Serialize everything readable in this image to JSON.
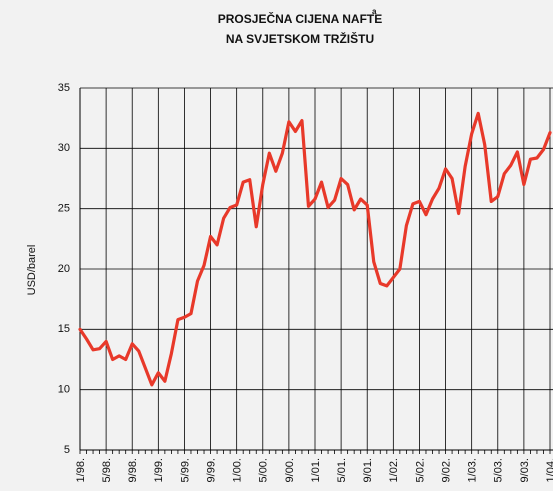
{
  "chart_data": {
    "type": "line",
    "title": [
      "PROSJEČNA CIJENA NAFTE",
      "NA SVJETSKOM TRŽIŠTU"
    ],
    "title_superscript": "a",
    "y_label": "USD/barel",
    "categories": [
      "1/98.",
      null,
      null,
      null,
      "5/98.",
      null,
      null,
      null,
      "9/98.",
      null,
      null,
      null,
      "1/99.",
      null,
      null,
      null,
      "5/99.",
      null,
      null,
      null,
      "9/99.",
      null,
      null,
      null,
      "1/00.",
      null,
      null,
      null,
      "5/00.",
      null,
      null,
      null,
      "9/00.",
      null,
      null,
      null,
      "1/01.",
      null,
      null,
      null,
      "5/01.",
      null,
      null,
      null,
      "9/01.",
      null,
      null,
      null,
      "1/02.",
      null,
      null,
      null,
      "5/02.",
      null,
      null,
      null,
      "9/02.",
      null,
      null,
      null,
      "1/03.",
      null,
      null,
      null,
      "5/03.",
      null,
      null,
      null,
      "9/03.",
      null,
      null,
      null,
      "1/04."
    ],
    "values": [
      15,
      14.2,
      13.3,
      13.4,
      14.0,
      12.5,
      12.8,
      12.5,
      13.8,
      13.2,
      11.8,
      10.4,
      11.4,
      10.7,
      13.0,
      15.8,
      16.0,
      16.3,
      19.0,
      20.3,
      22.7,
      22.0,
      24.2,
      25.1,
      25.3,
      27.2,
      27.4,
      23.5,
      27.0,
      29.6,
      28.1,
      29.6,
      32.2,
      31.4,
      32.3,
      25.2,
      25.8,
      27.2,
      25.1,
      25.7,
      27.5,
      27.0,
      24.9,
      25.8,
      25.3,
      20.6,
      18.8,
      18.6,
      19.3,
      20.0,
      23.6,
      25.4,
      25.6,
      24.5,
      25.8,
      26.7,
      28.3,
      27.5,
      24.6,
      28.5,
      31.2,
      32.9,
      30.3,
      25.6,
      26.0,
      27.9,
      28.6,
      29.7,
      27.0,
      29.1,
      29.2,
      29.9,
      31.3
    ],
    "color": "#e8392a",
    "ylim": [
      5,
      35
    ],
    "yticks": [
      5,
      10,
      15,
      20,
      25,
      30,
      35
    ],
    "grid": true
  }
}
